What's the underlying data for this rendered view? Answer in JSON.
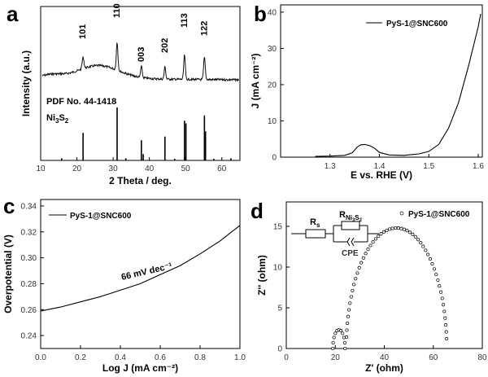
{
  "chart_data": [
    {
      "panel": "a",
      "type": "line",
      "xlabel": "2 Theta / deg.",
      "ylabel": "Intensity (a.u.)",
      "xlim": [
        10,
        65
      ],
      "xticks": [
        10,
        20,
        30,
        40,
        50,
        60
      ],
      "reference_label": "PDF No. 44-1418",
      "compound": "Ni3S2",
      "peaks": [
        {
          "label": "101",
          "x": 21.7
        },
        {
          "label": "110",
          "x": 31.1
        },
        {
          "label": "003",
          "x": 37.8
        },
        {
          "label": "202",
          "x": 44.3
        },
        {
          "label": "113",
          "x": 49.7
        },
        {
          "label": "122",
          "x": 55.2
        }
      ],
      "reference_lines": [
        {
          "x": 21.7,
          "h": 0.52
        },
        {
          "x": 31.1,
          "h": 1.0
        },
        {
          "x": 37.8,
          "h": 0.38
        },
        {
          "x": 38.3,
          "h": 0.12
        },
        {
          "x": 44.3,
          "h": 0.45
        },
        {
          "x": 49.7,
          "h": 0.75
        },
        {
          "x": 50.1,
          "h": 0.7
        },
        {
          "x": 55.2,
          "h": 0.85
        },
        {
          "x": 55.5,
          "h": 0.55
        },
        {
          "x": 15.8,
          "h": 0.04
        },
        {
          "x": 33.5,
          "h": 0.04
        },
        {
          "x": 47.0,
          "h": 0.03
        },
        {
          "x": 57.8,
          "h": 0.03
        },
        {
          "x": 62.5,
          "h": 0.04
        }
      ]
    },
    {
      "panel": "b",
      "type": "line",
      "xlabel": "E vs. RHE (V)",
      "ylabel": "J (mA cm⁻²)",
      "xlim": [
        1.2,
        1.6
      ],
      "ylim": [
        0,
        42
      ],
      "xticks": [
        1.3,
        1.4,
        1.5,
        1.6
      ],
      "yticks": [
        0,
        10,
        20,
        30,
        40
      ],
      "legend": "PyS-1@SNC600",
      "series": [
        {
          "name": "PyS-1@SNC600",
          "x": [
            1.27,
            1.3,
            1.33,
            1.345,
            1.355,
            1.362,
            1.37,
            1.38,
            1.39,
            1.4,
            1.42,
            1.45,
            1.48,
            1.5,
            1.52,
            1.54,
            1.56,
            1.58,
            1.6,
            1.605
          ],
          "y": [
            0.2,
            0.3,
            0.5,
            1.2,
            2.8,
            3.4,
            3.5,
            3.2,
            2.5,
            1.3,
            0.6,
            0.5,
            0.9,
            1.6,
            3.5,
            8.0,
            15.0,
            25.0,
            36.0,
            39.5
          ]
        }
      ]
    },
    {
      "panel": "c",
      "type": "line",
      "xlabel": "Log J (mA cm⁻²)",
      "ylabel": "Overpotential (V)",
      "xlim": [
        0.0,
        1.0
      ],
      "ylim": [
        0.23,
        0.345
      ],
      "xticks": [
        0.0,
        0.2,
        0.4,
        0.6,
        0.8,
        1.0
      ],
      "yticks": [
        0.24,
        0.26,
        0.28,
        0.3,
        0.32,
        0.34
      ],
      "legend": "PyS-1@SNC600",
      "annotation": "66 mV dec⁻¹",
      "series": [
        {
          "name": "PyS-1@SNC600",
          "x": [
            0.0,
            0.1,
            0.2,
            0.3,
            0.4,
            0.5,
            0.6,
            0.7,
            0.8,
            0.9,
            1.0
          ],
          "y": [
            0.259,
            0.262,
            0.266,
            0.27,
            0.275,
            0.28,
            0.287,
            0.294,
            0.303,
            0.313,
            0.325
          ]
        }
      ]
    },
    {
      "panel": "d",
      "type": "scatter",
      "xlabel": "Z' (ohm)",
      "ylabel": "Z'' (ohm)",
      "xlim": [
        0,
        80
      ],
      "ylim": [
        0,
        18
      ],
      "xticks": [
        0,
        20,
        40,
        60,
        80
      ],
      "yticks": [
        0,
        5,
        10,
        15
      ],
      "legend": "PyS-1@SNC600",
      "circuit": {
        "rs": "Rs",
        "rct": "RNi3S2",
        "cpe": "CPE"
      }
    }
  ]
}
